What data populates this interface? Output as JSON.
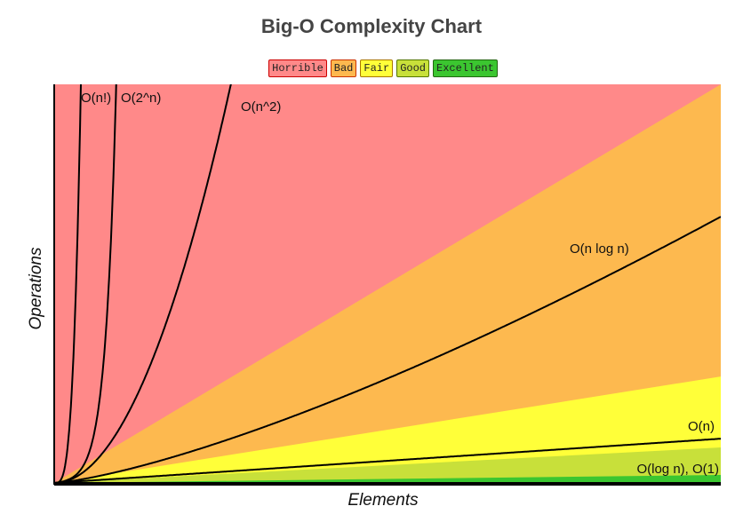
{
  "chart_data": {
    "type": "line",
    "title": "Big-O Complexity Chart",
    "xlabel": "Elements",
    "ylabel": "Operations",
    "grid": false,
    "legend_placement": "top-center",
    "legend": [
      {
        "label": "Horrible",
        "color": "#ff8989",
        "border": "#cc0000"
      },
      {
        "label": "Bad",
        "color": "#fdb94f",
        "border": "#cc3300"
      },
      {
        "label": "Fair",
        "color": "#ffff39",
        "border": "#aa7700"
      },
      {
        "label": "Good",
        "color": "#c8e03a",
        "border": "#557700"
      },
      {
        "label": "Excellent",
        "color": "#3bc630",
        "border": "#226611"
      }
    ],
    "regions": [
      "Horrible",
      "Bad",
      "Fair",
      "Good",
      "Excellent"
    ],
    "series": [
      {
        "name": "O(n!)",
        "label": "O(n!)"
      },
      {
        "name": "O(2^n)",
        "label": "O(2^n)"
      },
      {
        "name": "O(n^2)",
        "label": "O(n^2)"
      },
      {
        "name": "O(n log n)",
        "label": "O(n log n)"
      },
      {
        "name": "O(n)",
        "label": "O(n)"
      },
      {
        "name": "O(log n), O(1)",
        "label": "O(log n), O(1)"
      }
    ],
    "line_color": "#000000"
  }
}
